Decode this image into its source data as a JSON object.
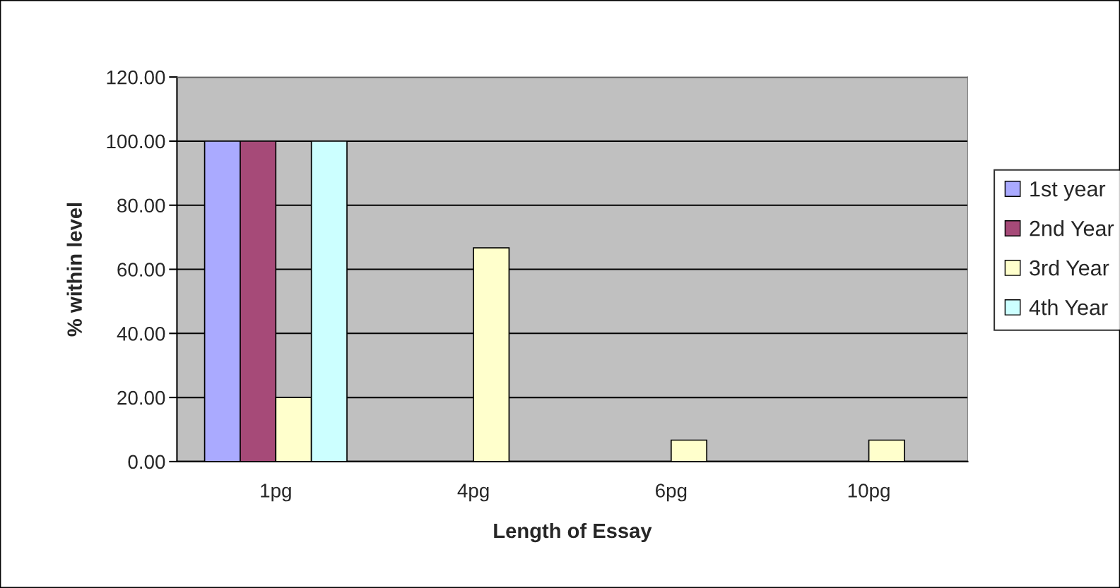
{
  "chart_data": {
    "type": "bar",
    "xlabel": "Length of Essay",
    "ylabel": "% within level",
    "categories": [
      "1pg",
      "4pg",
      "6pg",
      "10pg"
    ],
    "series": [
      {
        "name": "1st year",
        "color": "#aaaaff",
        "values": [
          100,
          null,
          null,
          null
        ]
      },
      {
        "name": "2nd Year",
        "color": "#a64a78",
        "values": [
          100,
          null,
          null,
          null
        ]
      },
      {
        "name": "3rd Year",
        "color": "#ffffcc",
        "values": [
          20,
          66.7,
          6.7,
          6.7
        ]
      },
      {
        "name": "4th Year",
        "color": "#ccffff",
        "values": [
          100,
          null,
          null,
          null
        ]
      }
    ],
    "ylim": [
      0,
      120
    ],
    "yticks": [
      {
        "value": 0,
        "label": "0.00"
      },
      {
        "value": 20,
        "label": "20.00"
      },
      {
        "value": 40,
        "label": "40.00"
      },
      {
        "value": 60,
        "label": "60.00"
      },
      {
        "value": 80,
        "label": "80.00"
      },
      {
        "value": 100,
        "label": "100.00"
      },
      {
        "value": 120,
        "label": "120.00"
      }
    ],
    "grid": "y",
    "legend": "right"
  }
}
